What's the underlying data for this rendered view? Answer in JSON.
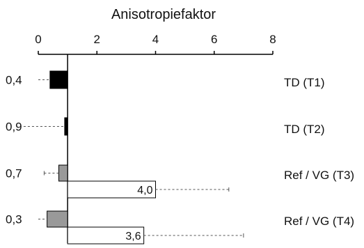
{
  "chart_data": {
    "type": "bar",
    "orientation": "horizontal",
    "xlabel": "Anisotropiefaktor",
    "xlim": [
      0,
      8
    ],
    "xticks": [
      "0",
      "2",
      "4",
      "6",
      "8"
    ],
    "baseline": 1,
    "grid": false,
    "legend": "none",
    "categories": [
      "TD (T1)",
      "TD (T2)",
      "Ref / VG (T3)",
      "Ref / VG (T4)"
    ],
    "series": [
      {
        "values": [
          0.4,
          0.9,
          0.7,
          0.3
        ],
        "labels": [
          "0,4",
          "0,9",
          "0,7",
          "0,3"
        ],
        "error_low": [
          0.0,
          -0.5,
          0.2,
          0.0
        ],
        "colors": [
          "#000000",
          "#000000",
          "#999999",
          "#999999"
        ]
      },
      {
        "values": [
          null,
          null,
          4.0,
          3.6
        ],
        "labels": [
          "",
          "",
          "4,0",
          "3,6"
        ],
        "error_high": [
          null,
          null,
          6.5,
          7.0
        ],
        "colors": [
          "#ffffff",
          "#ffffff",
          "#ffffff",
          "#ffffff"
        ]
      }
    ]
  }
}
